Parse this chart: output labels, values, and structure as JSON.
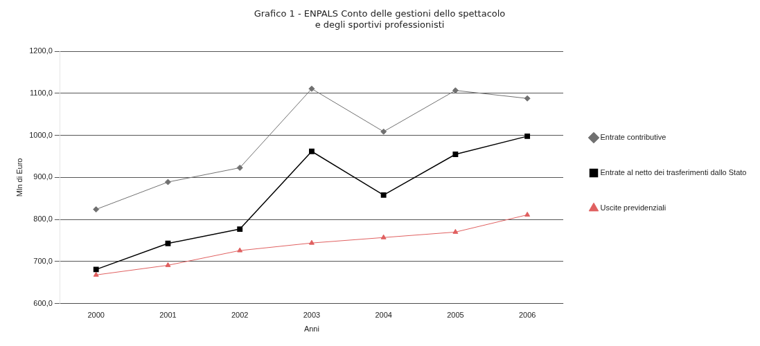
{
  "chart_data": {
    "type": "line",
    "title": "Grafico 1 - ENPALS Conto delle gestioni dello spettacolo\ne degli sportivi professionisti",
    "xlabel": "Anni",
    "ylabel": "Mln di Euro",
    "categories": [
      "2000",
      "2001",
      "2002",
      "2003",
      "2004",
      "2005",
      "2006"
    ],
    "series": [
      {
        "name": "Entrate contributive",
        "color": "#707070",
        "marker": "diamond",
        "values": [
          824,
          889,
          923,
          1111,
          1009,
          1107,
          1088
        ]
      },
      {
        "name": "Entrate al netto dei trasferimenti dallo Stato",
        "color": "#000000",
        "marker": "square",
        "values": [
          681,
          743,
          777,
          962,
          858,
          955,
          998
        ]
      },
      {
        "name": "Uscite previdenziali",
        "color": "#e06060",
        "marker": "triangle",
        "values": [
          668,
          691,
          726,
          744,
          757,
          770,
          811
        ]
      }
    ],
    "ylim": [
      600,
      1200
    ],
    "yticks": [
      {
        "value": 600,
        "label": "600,0"
      },
      {
        "value": 700,
        "label": "700,0"
      },
      {
        "value": 800,
        "label": "800,0"
      },
      {
        "value": 900,
        "label": "900,0"
      },
      {
        "value": 1000,
        "label": "1000,0"
      },
      {
        "value": 1100,
        "label": "1100,0"
      },
      {
        "value": 1200,
        "label": "1200,0"
      }
    ],
    "grid": "y",
    "legend": "right"
  }
}
